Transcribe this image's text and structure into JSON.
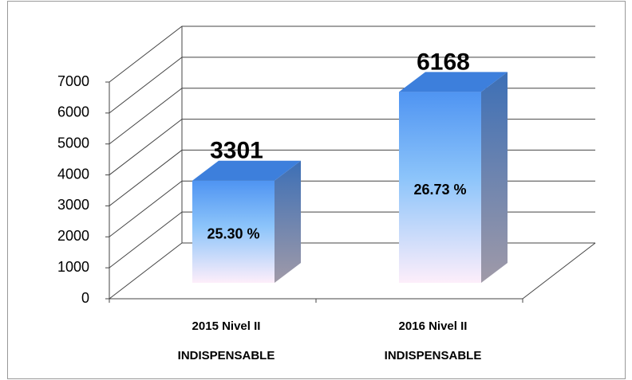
{
  "chart_data": {
    "type": "bar3d",
    "categories": [
      [
        "2015 Nivel II",
        "INDISPENSABLE"
      ],
      [
        "2016 Nivel II",
        "INDISPENSABLE"
      ]
    ],
    "values": [
      3301,
      6168
    ],
    "annotations": [
      "25.30 %",
      "26.73 %"
    ],
    "ylim": [
      0,
      7000
    ],
    "yticks": [
      0,
      1000,
      2000,
      3000,
      4000,
      5000,
      6000,
      7000
    ],
    "grid": true,
    "color": "#4f94f2"
  }
}
